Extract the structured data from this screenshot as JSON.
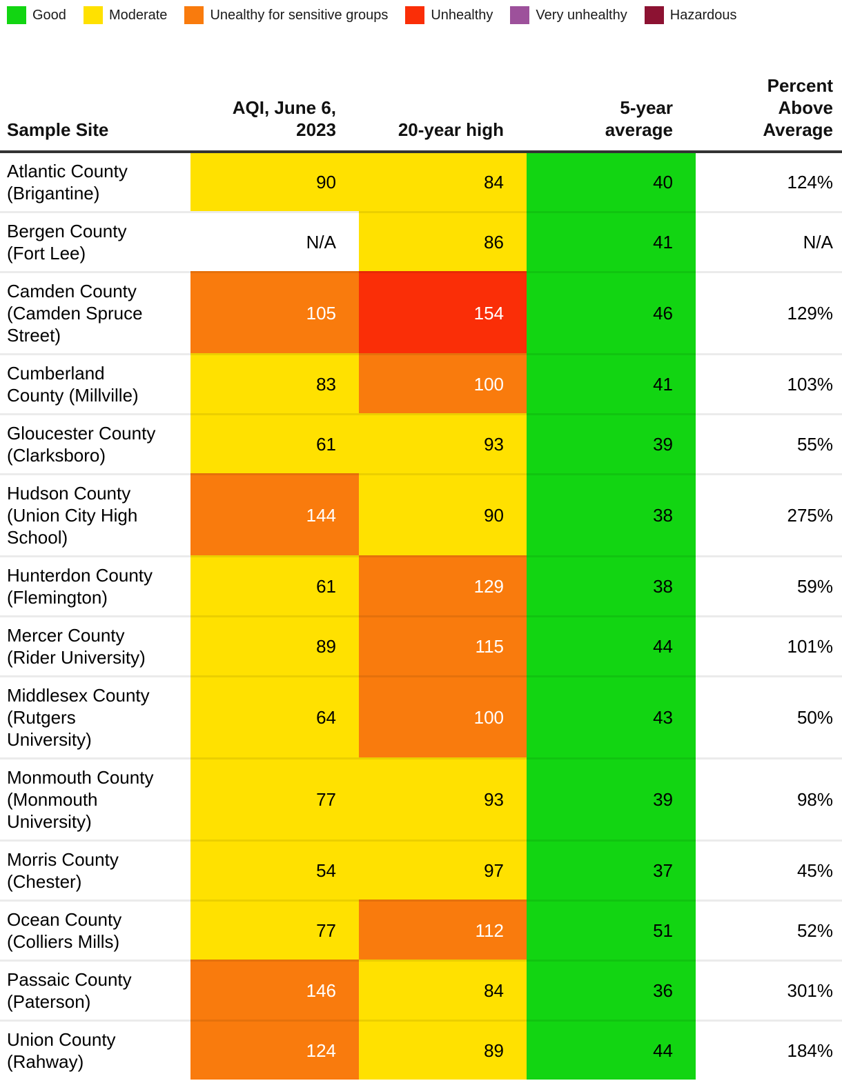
{
  "colors": {
    "good": "#12d512",
    "moderate": "#ffe100",
    "usg": "#f97b0d",
    "unhealthy": "#fa2e07",
    "very_unhealthy": "#9d519b",
    "hazardous": "#8c1232",
    "na": "#ffffff"
  },
  "legend": {
    "items": [
      {
        "label": "Good",
        "key": "good"
      },
      {
        "label": "Moderate",
        "key": "moderate"
      },
      {
        "label": "Unealthy for sensitive groups",
        "key": "usg"
      },
      {
        "label": "Unhealthy",
        "key": "unhealthy"
      },
      {
        "label": "Very unhealthy",
        "key": "very_unhealthy"
      },
      {
        "label": "Hazardous",
        "key": "hazardous"
      }
    ]
  },
  "chart_data": {
    "type": "table",
    "columns": [
      "Sample Site",
      "AQI, June 6,\n2023",
      "20-year high",
      "5-year\naverage",
      "Percent\nAbove\nAverage"
    ],
    "rows": [
      {
        "site": "Atlantic County\n(Brigantine)",
        "aqi": "90",
        "aqi_level": "moderate",
        "high": "84",
        "high_level": "moderate",
        "avg": "40",
        "avg_level": "good",
        "pct": "124%"
      },
      {
        "site": "Bergen County\n(Fort Lee)",
        "aqi": "N/A",
        "aqi_level": "na",
        "high": "86",
        "high_level": "moderate",
        "avg": "41",
        "avg_level": "good",
        "pct": "N/A"
      },
      {
        "site": "Camden County\n(Camden Spruce\nStreet)",
        "aqi": "105",
        "aqi_level": "usg",
        "high": "154",
        "high_level": "unhealthy",
        "avg": "46",
        "avg_level": "good",
        "pct": "129%"
      },
      {
        "site": "Cumberland\nCounty (Millville)",
        "aqi": "83",
        "aqi_level": "moderate",
        "high": "100",
        "high_level": "usg",
        "avg": "41",
        "avg_level": "good",
        "pct": "103%"
      },
      {
        "site": "Gloucester County\n(Clarksboro)",
        "aqi": "61",
        "aqi_level": "moderate",
        "high": "93",
        "high_level": "moderate",
        "avg": "39",
        "avg_level": "good",
        "pct": "55%"
      },
      {
        "site": "Hudson County\n(Union City High\nSchool)",
        "aqi": "144",
        "aqi_level": "usg",
        "high": "90",
        "high_level": "moderate",
        "avg": "38",
        "avg_level": "good",
        "pct": "275%"
      },
      {
        "site": "Hunterdon County\n(Flemington)",
        "aqi": "61",
        "aqi_level": "moderate",
        "high": "129",
        "high_level": "usg",
        "avg": "38",
        "avg_level": "good",
        "pct": "59%"
      },
      {
        "site": "Mercer County\n(Rider University)",
        "aqi": "89",
        "aqi_level": "moderate",
        "high": "115",
        "high_level": "usg",
        "avg": "44",
        "avg_level": "good",
        "pct": "101%"
      },
      {
        "site": "Middlesex County\n(Rutgers\nUniversity)",
        "aqi": "64",
        "aqi_level": "moderate",
        "high": "100",
        "high_level": "usg",
        "avg": "43",
        "avg_level": "good",
        "pct": "50%"
      },
      {
        "site": "Monmouth County\n(Monmouth\nUniversity)",
        "aqi": "77",
        "aqi_level": "moderate",
        "high": "93",
        "high_level": "moderate",
        "avg": "39",
        "avg_level": "good",
        "pct": "98%"
      },
      {
        "site": "Morris County\n(Chester)",
        "aqi": "54",
        "aqi_level": "moderate",
        "high": "97",
        "high_level": "moderate",
        "avg": "37",
        "avg_level": "good",
        "pct": "45%"
      },
      {
        "site": "Ocean County\n(Colliers Mills)",
        "aqi": "77",
        "aqi_level": "moderate",
        "high": "112",
        "high_level": "usg",
        "avg": "51",
        "avg_level": "good",
        "pct": "52%"
      },
      {
        "site": "Passaic County\n(Paterson)",
        "aqi": "146",
        "aqi_level": "usg",
        "high": "84",
        "high_level": "moderate",
        "avg": "36",
        "avg_level": "good",
        "pct": "301%"
      },
      {
        "site": "Union County\n(Rahway)",
        "aqi": "124",
        "aqi_level": "usg",
        "high": "89",
        "high_level": "moderate",
        "avg": "44",
        "avg_level": "good",
        "pct": "184%"
      }
    ]
  }
}
